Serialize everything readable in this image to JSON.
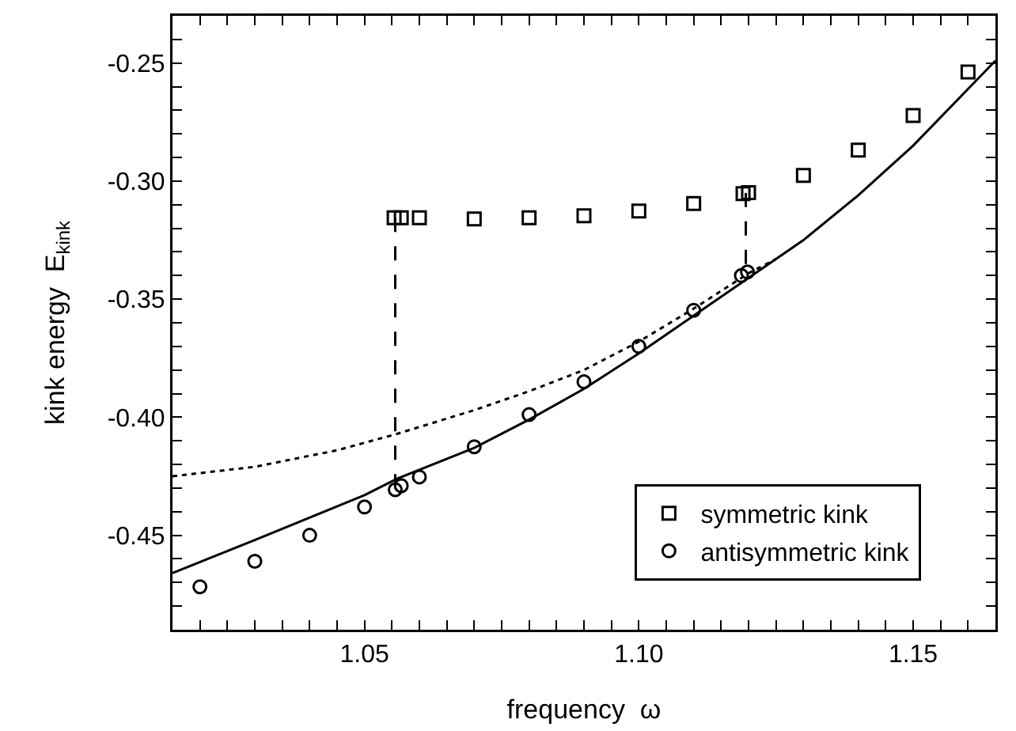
{
  "chart_data": {
    "type": "scatter",
    "xlabel": "frequency  ω",
    "ylabel": "kink energy  E$_{kink}$",
    "xlim": [
      1.015,
      1.165
    ],
    "ylim": [
      -0.49,
      -0.23
    ],
    "xticks": [
      {
        "value": 1.02,
        "label": null
      },
      {
        "value": 1.025,
        "label": null
      },
      {
        "value": 1.03,
        "label": null
      },
      {
        "value": 1.035,
        "label": null
      },
      {
        "value": 1.04,
        "label": null
      },
      {
        "value": 1.045,
        "label": null
      },
      {
        "value": 1.05,
        "label": "1.05"
      },
      {
        "value": 1.055,
        "label": null
      },
      {
        "value": 1.06,
        "label": null
      },
      {
        "value": 1.065,
        "label": null
      },
      {
        "value": 1.07,
        "label": null
      },
      {
        "value": 1.075,
        "label": null
      },
      {
        "value": 1.08,
        "label": null
      },
      {
        "value": 1.085,
        "label": null
      },
      {
        "value": 1.09,
        "label": null
      },
      {
        "value": 1.095,
        "label": null
      },
      {
        "value": 1.1,
        "label": "1.10"
      },
      {
        "value": 1.105,
        "label": null
      },
      {
        "value": 1.11,
        "label": null
      },
      {
        "value": 1.115,
        "label": null
      },
      {
        "value": 1.12,
        "label": null
      },
      {
        "value": 1.125,
        "label": null
      },
      {
        "value": 1.13,
        "label": null
      },
      {
        "value": 1.135,
        "label": null
      },
      {
        "value": 1.14,
        "label": null
      },
      {
        "value": 1.145,
        "label": null
      },
      {
        "value": 1.15,
        "label": "1.15"
      },
      {
        "value": 1.155,
        "label": null
      },
      {
        "value": 1.16,
        "label": null
      }
    ],
    "yticks": [
      {
        "value": -0.48,
        "label": null
      },
      {
        "value": -0.47,
        "label": null
      },
      {
        "value": -0.46,
        "label": null
      },
      {
        "value": -0.45,
        "label": "-0.45"
      },
      {
        "value": -0.44,
        "label": null
      },
      {
        "value": -0.43,
        "label": null
      },
      {
        "value": -0.42,
        "label": null
      },
      {
        "value": -0.41,
        "label": null
      },
      {
        "value": -0.4,
        "label": "-0.40"
      },
      {
        "value": -0.39,
        "label": null
      },
      {
        "value": -0.38,
        "label": null
      },
      {
        "value": -0.37,
        "label": null
      },
      {
        "value": -0.36,
        "label": null
      },
      {
        "value": -0.35,
        "label": "-0.35"
      },
      {
        "value": -0.34,
        "label": null
      },
      {
        "value": -0.33,
        "label": null
      },
      {
        "value": -0.32,
        "label": null
      },
      {
        "value": -0.31,
        "label": null
      },
      {
        "value": -0.3,
        "label": "-0.30"
      },
      {
        "value": -0.29,
        "label": null
      },
      {
        "value": -0.28,
        "label": null
      },
      {
        "value": -0.27,
        "label": null
      },
      {
        "value": -0.26,
        "label": null
      },
      {
        "value": -0.25,
        "label": "-0.25"
      },
      {
        "value": -0.24,
        "label": null
      }
    ],
    "grid": false,
    "legend": "bottom right",
    "series": [
      {
        "type": "line",
        "color": "#000000",
        "marker": "none",
        "line_style": "solid",
        "x": [
          1.015,
          1.03,
          1.05,
          1.056,
          1.07,
          1.08,
          1.09,
          1.1,
          1.11,
          1.12,
          1.13,
          1.14,
          1.15,
          1.16,
          1.165
        ],
        "values": [
          -0.466,
          -0.452,
          -0.433,
          -0.426,
          -0.413,
          -0.401,
          -0.388,
          -0.373,
          -0.357,
          -0.341,
          -0.325,
          -0.306,
          -0.285,
          -0.261,
          -0.249
        ]
      },
      {
        "type": "line",
        "color": "#000000",
        "marker": "none",
        "line_style": "dotted",
        "x": [
          1.015,
          1.03,
          1.045,
          1.056,
          1.07,
          1.08,
          1.09,
          1.1,
          1.11,
          1.12,
          1.125
        ],
        "values": [
          -0.425,
          -0.421,
          -0.414,
          -0.407,
          -0.397,
          -0.389,
          -0.38,
          -0.368,
          -0.354,
          -0.339,
          -0.333
        ]
      },
      {
        "type": "line",
        "color": "#000000",
        "marker": "none",
        "line_style": "dashed",
        "x": [
          1.0556,
          1.0556
        ],
        "values": [
          -0.3155,
          -0.4307
        ]
      },
      {
        "type": "line",
        "color": "#000000",
        "marker": "none",
        "line_style": "dashed",
        "x": [
          1.1195,
          1.1195
        ],
        "values": [
          -0.305,
          -0.3385
        ]
      },
      {
        "name": "symmetric kink",
        "color": "#000000",
        "marker": "square",
        "x": [
          1.0554,
          1.0567,
          1.06,
          1.07,
          1.08,
          1.09,
          1.1,
          1.11,
          1.119,
          1.12,
          1.13,
          1.14,
          1.15,
          1.16
        ],
        "values": [
          -0.3155,
          -0.3155,
          -0.3155,
          -0.316,
          -0.3155,
          -0.3147,
          -0.3127,
          -0.3095,
          -0.3053,
          -0.3049,
          -0.2976,
          -0.2869,
          -0.2722,
          -0.2538
        ]
      },
      {
        "name": "antisymmetric kink",
        "color": "#000000",
        "marker": "circle",
        "x": [
          1.02,
          1.03,
          1.04,
          1.05,
          1.0556,
          1.0567,
          1.06,
          1.07,
          1.08,
          1.09,
          1.1,
          1.11,
          1.1187,
          1.1198
        ],
        "values": [
          -0.4718,
          -0.461,
          -0.45,
          -0.438,
          -0.4307,
          -0.429,
          -0.4253,
          -0.4125,
          -0.3989,
          -0.385,
          -0.37,
          -0.3547,
          -0.34,
          -0.3385
        ]
      }
    ]
  }
}
